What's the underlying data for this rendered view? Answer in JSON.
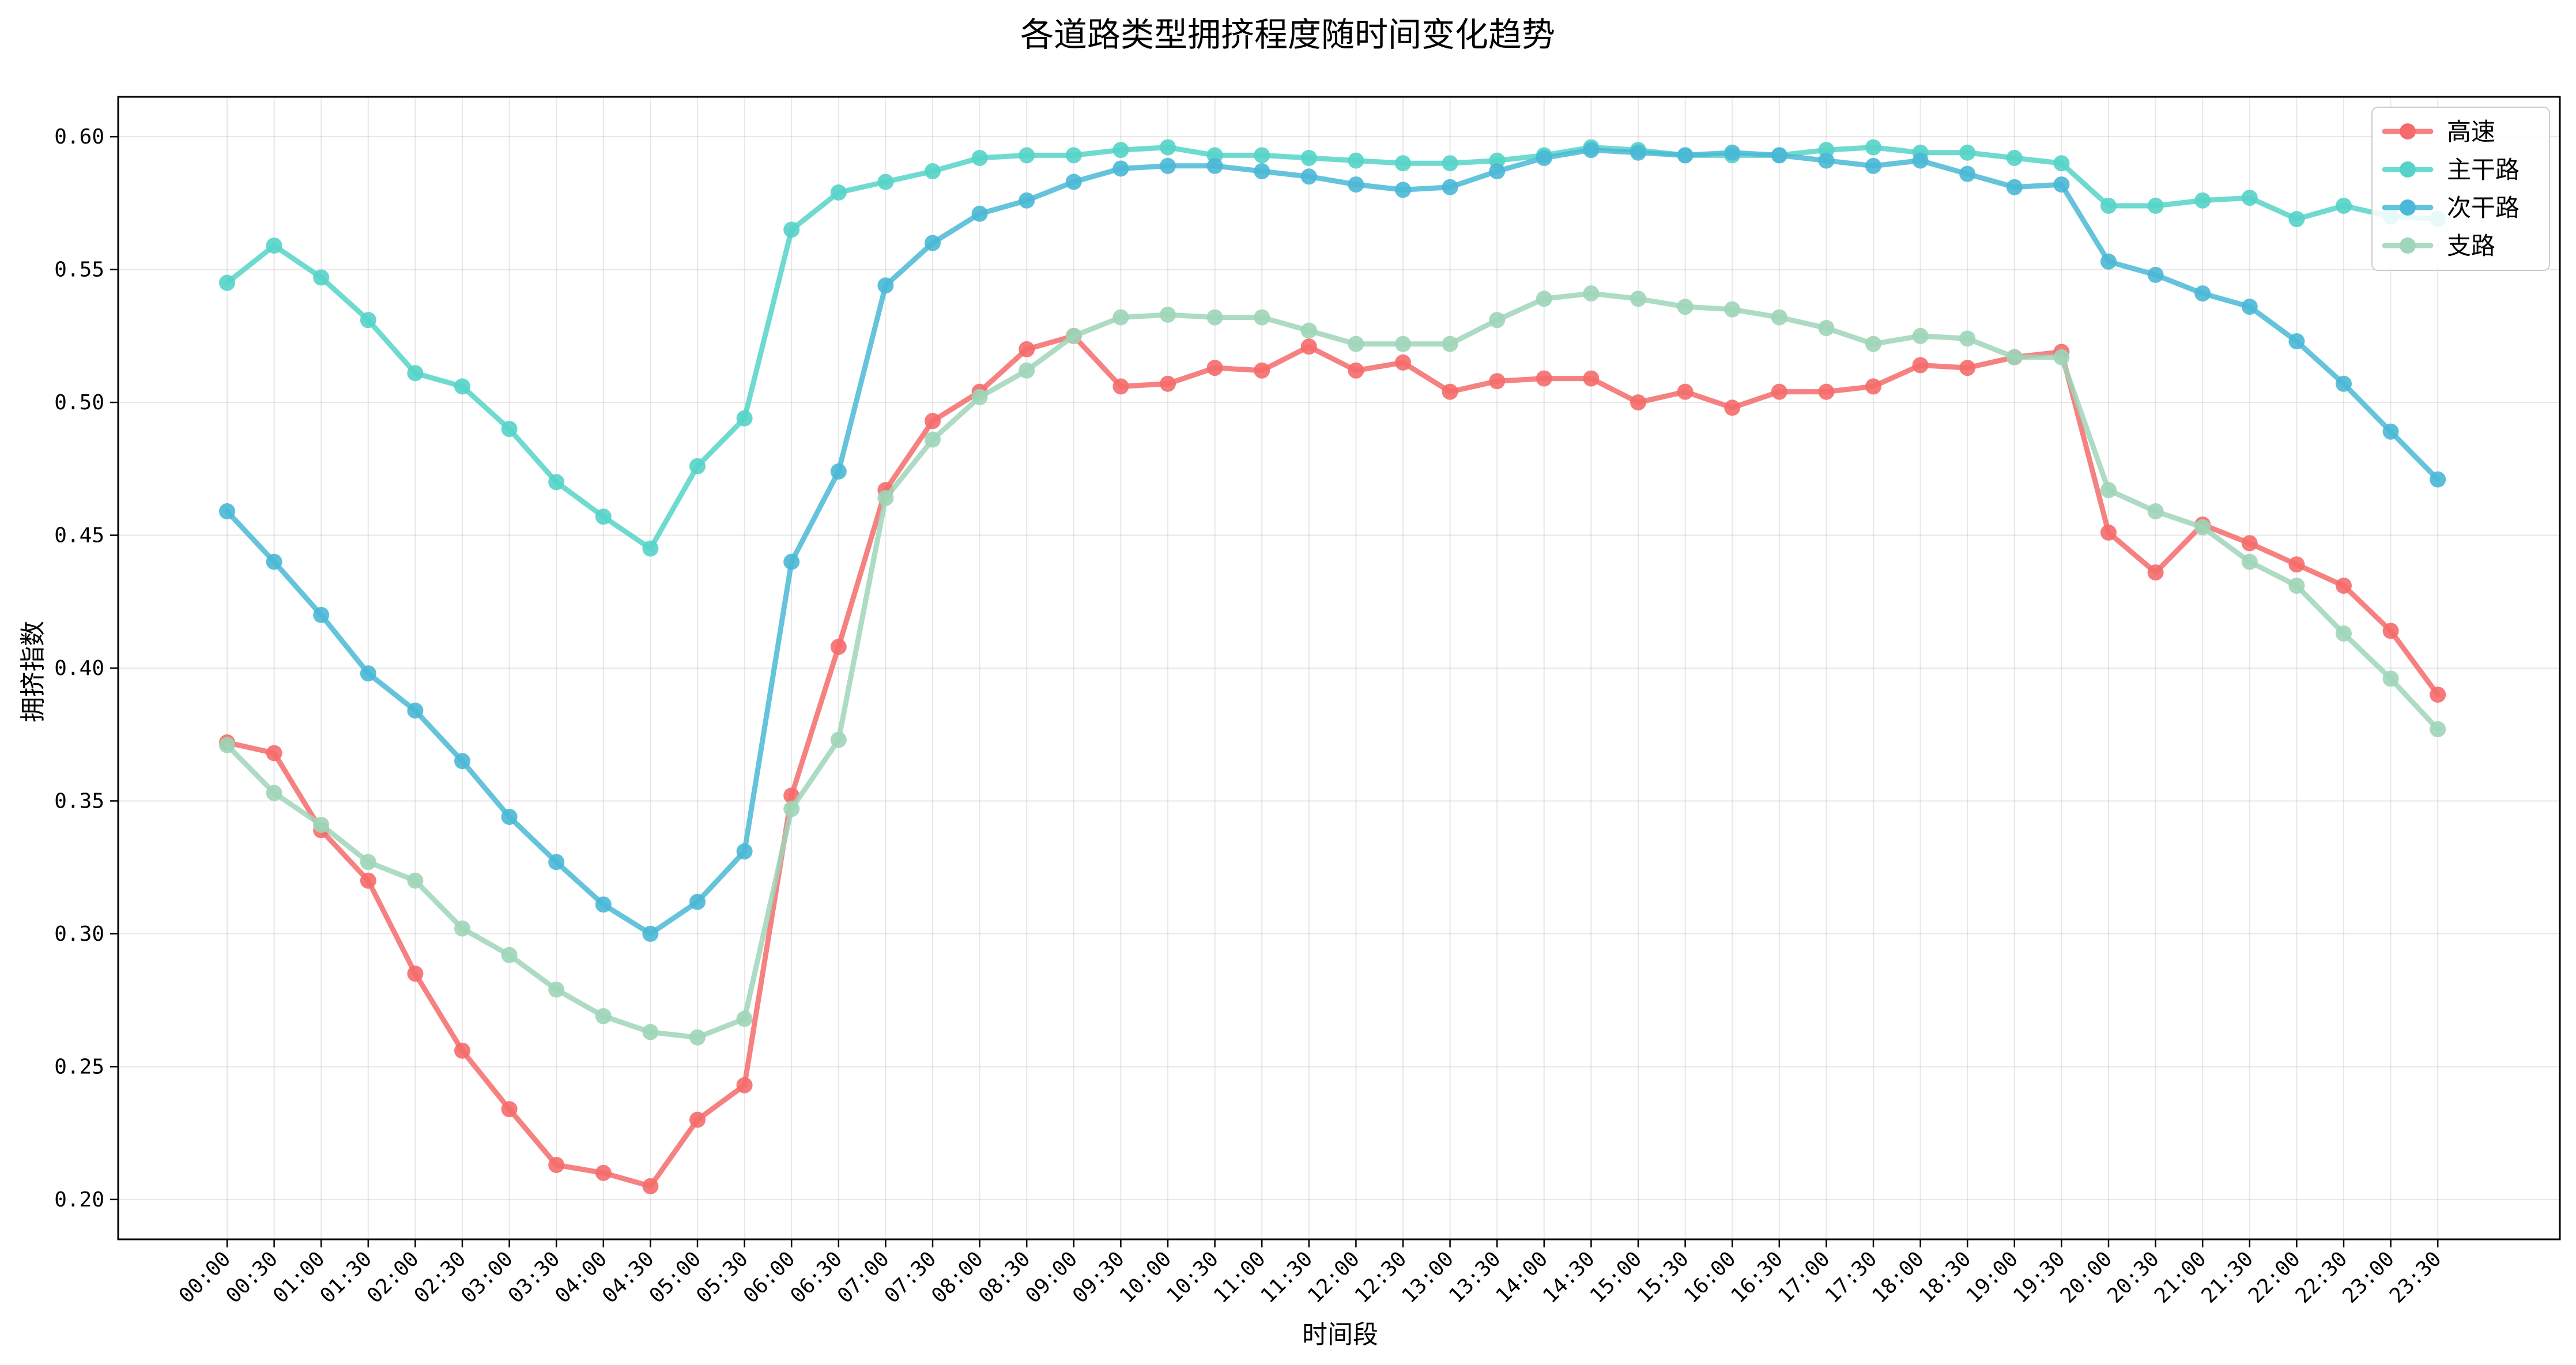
{
  "chart_data": {
    "type": "line",
    "title": "各道路类型拥挤程度随时间变化趋势",
    "xlabel": "时间段",
    "ylabel": "拥挤指数",
    "ylim": [
      0.185,
      0.615
    ],
    "yticks": [
      0.2,
      0.25,
      0.3,
      0.35,
      0.4,
      0.45,
      0.5,
      0.55,
      0.6
    ],
    "ytick_labels": [
      "0.20",
      "0.25",
      "0.30",
      "0.35",
      "0.40",
      "0.45",
      "0.50",
      "0.55",
      "0.60"
    ],
    "grid": true,
    "legend_position": "top-right",
    "categories": [
      "00:00",
      "00:30",
      "01:00",
      "01:30",
      "02:00",
      "02:30",
      "03:00",
      "03:30",
      "04:00",
      "04:30",
      "05:00",
      "05:30",
      "06:00",
      "06:30",
      "07:00",
      "07:30",
      "08:00",
      "08:30",
      "09:00",
      "09:30",
      "10:00",
      "10:30",
      "11:00",
      "11:30",
      "12:00",
      "12:30",
      "13:00",
      "13:30",
      "14:00",
      "14:30",
      "15:00",
      "15:30",
      "16:00",
      "16:30",
      "17:00",
      "17:30",
      "18:00",
      "18:30",
      "19:00",
      "19:30",
      "20:00",
      "20:30",
      "21:00",
      "21:30",
      "22:00",
      "22:30",
      "23:00",
      "23:30"
    ],
    "series": [
      {
        "name": "高速",
        "color": "#f56b6b",
        "values": [
          0.372,
          0.368,
          0.339,
          0.32,
          0.285,
          0.256,
          0.234,
          0.213,
          0.21,
          0.205,
          0.23,
          0.243,
          0.352,
          0.408,
          0.467,
          0.493,
          0.504,
          0.52,
          0.525,
          0.506,
          0.507,
          0.513,
          0.512,
          0.521,
          0.512,
          0.515,
          0.504,
          0.508,
          0.509,
          0.509,
          0.5,
          0.504,
          0.498,
          0.504,
          0.504,
          0.506,
          0.514,
          0.513,
          0.517,
          0.519,
          0.451,
          0.436,
          0.454,
          0.447,
          0.439,
          0.431,
          0.414,
          0.39
        ]
      },
      {
        "name": "主干路",
        "color": "#55d3c8",
        "values": [
          0.545,
          0.559,
          0.547,
          0.531,
          0.511,
          0.506,
          0.49,
          0.47,
          0.457,
          0.445,
          0.476,
          0.494,
          0.565,
          0.579,
          0.583,
          0.587,
          0.592,
          0.593,
          0.593,
          0.595,
          0.596,
          0.593,
          0.593,
          0.592,
          0.591,
          0.59,
          0.59,
          0.591,
          0.593,
          0.596,
          0.595,
          0.593,
          0.593,
          0.593,
          0.595,
          0.596,
          0.594,
          0.594,
          0.592,
          0.59,
          0.574,
          0.574,
          0.576,
          0.577,
          0.569,
          0.574,
          0.57,
          0.569
        ]
      },
      {
        "name": "次干路",
        "color": "#4ab8d6",
        "values": [
          0.459,
          0.44,
          0.42,
          0.398,
          0.384,
          0.365,
          0.344,
          0.327,
          0.311,
          0.3,
          0.312,
          0.331,
          0.44,
          0.474,
          0.544,
          0.56,
          0.571,
          0.576,
          0.583,
          0.588,
          0.589,
          0.589,
          0.587,
          0.585,
          0.582,
          0.58,
          0.581,
          0.587,
          0.592,
          0.595,
          0.594,
          0.593,
          0.594,
          0.593,
          0.591,
          0.589,
          0.591,
          0.586,
          0.581,
          0.582,
          0.553,
          0.548,
          0.541,
          0.536,
          0.523,
          0.507,
          0.489,
          0.471
        ]
      },
      {
        "name": "支路",
        "color": "#9fd5b8",
        "values": [
          0.371,
          0.353,
          0.341,
          0.327,
          0.32,
          0.302,
          0.292,
          0.279,
          0.269,
          0.263,
          0.261,
          0.268,
          0.347,
          0.373,
          0.464,
          0.486,
          0.502,
          0.512,
          0.525,
          0.532,
          0.533,
          0.532,
          0.532,
          0.527,
          0.522,
          0.522,
          0.522,
          0.531,
          0.539,
          0.541,
          0.539,
          0.536,
          0.535,
          0.532,
          0.528,
          0.522,
          0.525,
          0.524,
          0.517,
          0.517,
          0.467,
          0.459,
          0.453,
          0.44,
          0.431,
          0.413,
          0.396,
          0.377
        ]
      }
    ]
  }
}
